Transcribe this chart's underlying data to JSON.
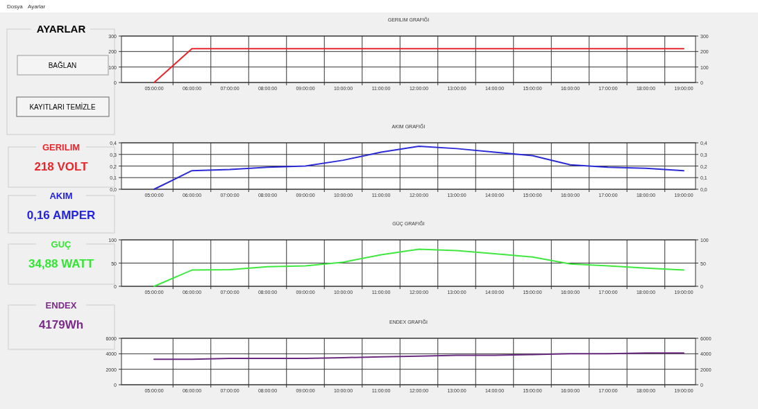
{
  "chart_data": [
    {
      "type": "other",
      "title": "AYARLAR",
      "annotations": [
        "Dosya",
        "Ayarlar",
        "BAĞLAN",
        "KAYITLARI TEMİZLE",
        "GERILIM",
        "218 VOLT",
        "AKIM",
        "0,16 AMPER",
        "GUÇ",
        "34,88 WATT",
        "ENDEX",
        "4179Wh"
      ],
      "colors": [
        "#e8262b",
        "#2323e0",
        "#33e633",
        "#7b2a8a"
      ]
    },
    {
      "type": "line",
      "title": "GERILIM GRAFIĞI",
      "categories": [
        "05:00:00",
        "06:00:00",
        "07:00:00",
        "08:00:00",
        "09:00:00",
        "10:00:00",
        "11:00:00",
        "12:00:00",
        "13:00:00",
        "14:00:00",
        "15:00:00",
        "16:00:00",
        "17:00:00",
        "18:00:00",
        "19:00:00"
      ],
      "series": [
        {
          "color": "#e8262b",
          "values": [
            0,
            218,
            218,
            218,
            218,
            218,
            218,
            218,
            218,
            218,
            218,
            218,
            218,
            218,
            218
          ]
        }
      ],
      "ylim": [
        0,
        300
      ],
      "yticks": [
        0,
        100,
        200,
        300
      ],
      "y2lim": [
        0,
        300
      ],
      "y2ticks": [
        0,
        100,
        200,
        300
      ],
      "grid": true
    },
    {
      "type": "line",
      "title": "AKIM GRAFIĞI",
      "categories": [
        "05:00:00",
        "06:00:00",
        "07:00:00",
        "08:00:00",
        "09:00:00",
        "10:00:00",
        "11:00:00",
        "12:00:00",
        "13:00:00",
        "14:00:00",
        "15:00:00",
        "16:00:00",
        "17:00:00",
        "18:00:00",
        "19:00:00"
      ],
      "series": [
        {
          "color": "#2a2ad6",
          "values": [
            0,
            0.16,
            0.17,
            0.19,
            0.2,
            0.25,
            0.32,
            0.37,
            0.35,
            0.32,
            0.29,
            0.21,
            0.19,
            0.18,
            0.16
          ]
        }
      ],
      "ylim": [
        0,
        0.4
      ],
      "yticks": [
        {
          "value": 0,
          "label": "0,0"
        },
        {
          "value": 0.1,
          "label": "0,1"
        },
        {
          "value": 0.2,
          "label": "0,2"
        },
        {
          "value": 0.3,
          "label": "0,3"
        },
        {
          "value": 0.4,
          "label": "0,4"
        }
      ],
      "y2lim": [
        0,
        0.4
      ],
      "y2ticks": [
        {
          "value": 0,
          "label": "0,0"
        },
        {
          "value": 0.1,
          "label": "0,1"
        },
        {
          "value": 0.2,
          "label": "0,2"
        },
        {
          "value": 0.3,
          "label": "0,3"
        },
        {
          "value": 0.4,
          "label": "0,4"
        }
      ],
      "grid": true
    },
    {
      "type": "line",
      "title": "GÜÇ GRAFIĞI",
      "categories": [
        "05:00:00",
        "06:00:00",
        "07:00:00",
        "08:00:00",
        "09:00:00",
        "10:00:00",
        "11:00:00",
        "12:00:00",
        "13:00:00",
        "14:00:00",
        "15:00:00",
        "16:00:00",
        "17:00:00",
        "18:00:00",
        "19:00:00"
      ],
      "series": [
        {
          "color": "#3fe83f",
          "values": [
            0,
            35,
            36,
            42,
            44,
            52,
            68,
            80,
            77,
            70,
            63,
            48,
            44,
            39,
            35
          ]
        }
      ],
      "ylim": [
        0,
        100
      ],
      "yticks": [
        0,
        50,
        100
      ],
      "y2lim": [
        0,
        100
      ],
      "y2ticks": [
        0,
        50,
        100
      ],
      "grid": true
    },
    {
      "type": "line",
      "title": "ENDEX GRAFIĞI",
      "categories": [
        "05:00:00",
        "06:00:00",
        "07:00:00",
        "08:00:00",
        "09:00:00",
        "10:00:00",
        "11:00:00",
        "12:00:00",
        "13:00:00",
        "14:00:00",
        "15:00:00",
        "16:00:00",
        "17:00:00",
        "18:00:00",
        "19:00:00"
      ],
      "series": [
        {
          "color": "#6a2a80",
          "values": [
            3300,
            3300,
            3400,
            3400,
            3400,
            3500,
            3600,
            3700,
            3800,
            3800,
            3900,
            4000,
            4000,
            4100,
            4100
          ]
        }
      ],
      "ylim": [
        0,
        6000
      ],
      "yticks": [
        0,
        2000,
        4000,
        6000
      ],
      "y2lim": [
        0,
        6000
      ],
      "y2ticks": [
        0,
        2000,
        4000,
        6000
      ],
      "grid": true
    }
  ]
}
